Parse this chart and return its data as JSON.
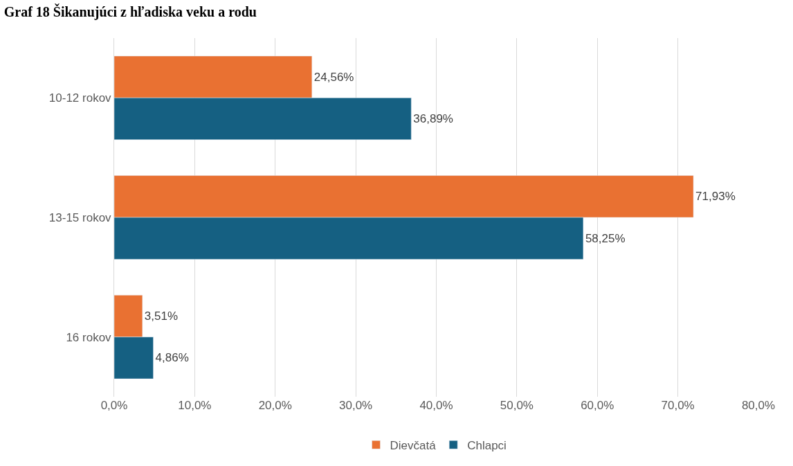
{
  "chart_data": {
    "type": "bar",
    "orientation": "horizontal",
    "title": "Graf 18 Šikanujúci z hľadiska veku a rodu",
    "categories": [
      "10-12 rokov",
      "13-15 rokov",
      "16 rokov"
    ],
    "series": [
      {
        "name": "Dievčatá",
        "color": "#e97132",
        "values": [
          24.56,
          71.93,
          3.51
        ],
        "value_labels": [
          "24,56%",
          "71,93%",
          "3,51%"
        ]
      },
      {
        "name": "Chlapci",
        "color": "#156082",
        "values": [
          36.89,
          58.25,
          4.86
        ],
        "value_labels": [
          "36,89%",
          "58,25%",
          "4,86%"
        ]
      }
    ],
    "xlim": [
      0,
      80
    ],
    "xticks": [
      {
        "value": 0,
        "label": "0,0%"
      },
      {
        "value": 10,
        "label": "10,0%"
      },
      {
        "value": 20,
        "label": "20,0%"
      },
      {
        "value": 30,
        "label": "30,0%"
      },
      {
        "value": 40,
        "label": "40,0%"
      },
      {
        "value": 50,
        "label": "50,0%"
      },
      {
        "value": 60,
        "label": "60,0%"
      },
      {
        "value": 70,
        "label": "70,0%"
      },
      {
        "value": 80,
        "label": "80,0%"
      }
    ],
    "grid": "x",
    "legend": "bottom"
  }
}
